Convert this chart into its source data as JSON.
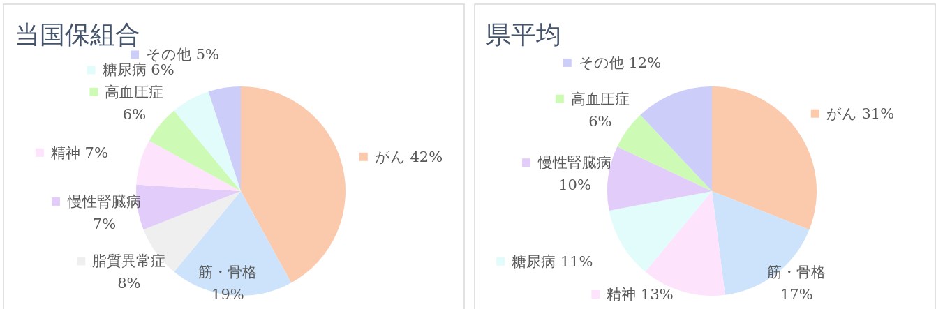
{
  "chart_data": [
    {
      "type": "pie",
      "title": "当国保組合",
      "categories": [
        "がん",
        "筋・骨格",
        "脂質異常症",
        "慢性腎臓病",
        "精神",
        "高血圧症",
        "糖尿病",
        "その他"
      ],
      "values": [
        42,
        19,
        8,
        7,
        7,
        6,
        6,
        5
      ],
      "value_labels": [
        "42%",
        "19%",
        "8%",
        "7%",
        "7%",
        "6%",
        "6%",
        "5%"
      ],
      "colors": [
        "#fbcaad",
        "#cce3fb",
        "#efefef",
        "#e2cdfa",
        "#fde3fb",
        "#cdfbb5",
        "#e2fcfc",
        "#cdcdfa"
      ],
      "legend": "left"
    },
    {
      "type": "pie",
      "title": "県平均",
      "categories": [
        "がん",
        "筋・骨格",
        "精神",
        "糖尿病",
        "慢性腎臓病",
        "高血圧症",
        "その他"
      ],
      "values": [
        31,
        17,
        13,
        11,
        10,
        6,
        12
      ],
      "value_labels": [
        "31%",
        "17%",
        "13%",
        "11%",
        "10%",
        "6%",
        "12%"
      ],
      "colors": [
        "#fbcaad",
        "#cce3fb",
        "#fde3fb",
        "#e2fcfc",
        "#e2cdfa",
        "#cdfbb5",
        "#cdcdfa"
      ],
      "legend": "left"
    }
  ]
}
